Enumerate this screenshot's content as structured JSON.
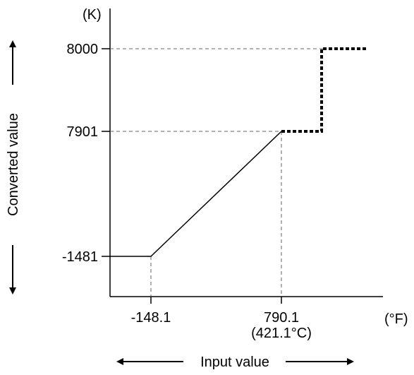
{
  "diagram": {
    "y_unit": "(K)",
    "x_unit": "(°F)",
    "y_ticks": [
      {
        "value": 8000,
        "label": "8000"
      },
      {
        "value": 7901,
        "label": "7901"
      },
      {
        "value": -1481,
        "label": "-1481"
      }
    ],
    "x_ticks": [
      {
        "value": -148.1,
        "label": "-148.1",
        "sub_label": ""
      },
      {
        "value": 790.1,
        "label": "790.1",
        "sub_label": "(421.1°C)"
      }
    ],
    "y_axis_title": "Converted value",
    "x_axis_title": "Input value",
    "conversion_line": {
      "low_clamp_value": -1481,
      "ramp_from": [
        -148.1,
        -1481
      ],
      "ramp_to": [
        790.1,
        7901
      ]
    },
    "dotted_step": {
      "from_value": 7901,
      "to_value": 8000
    }
  }
}
